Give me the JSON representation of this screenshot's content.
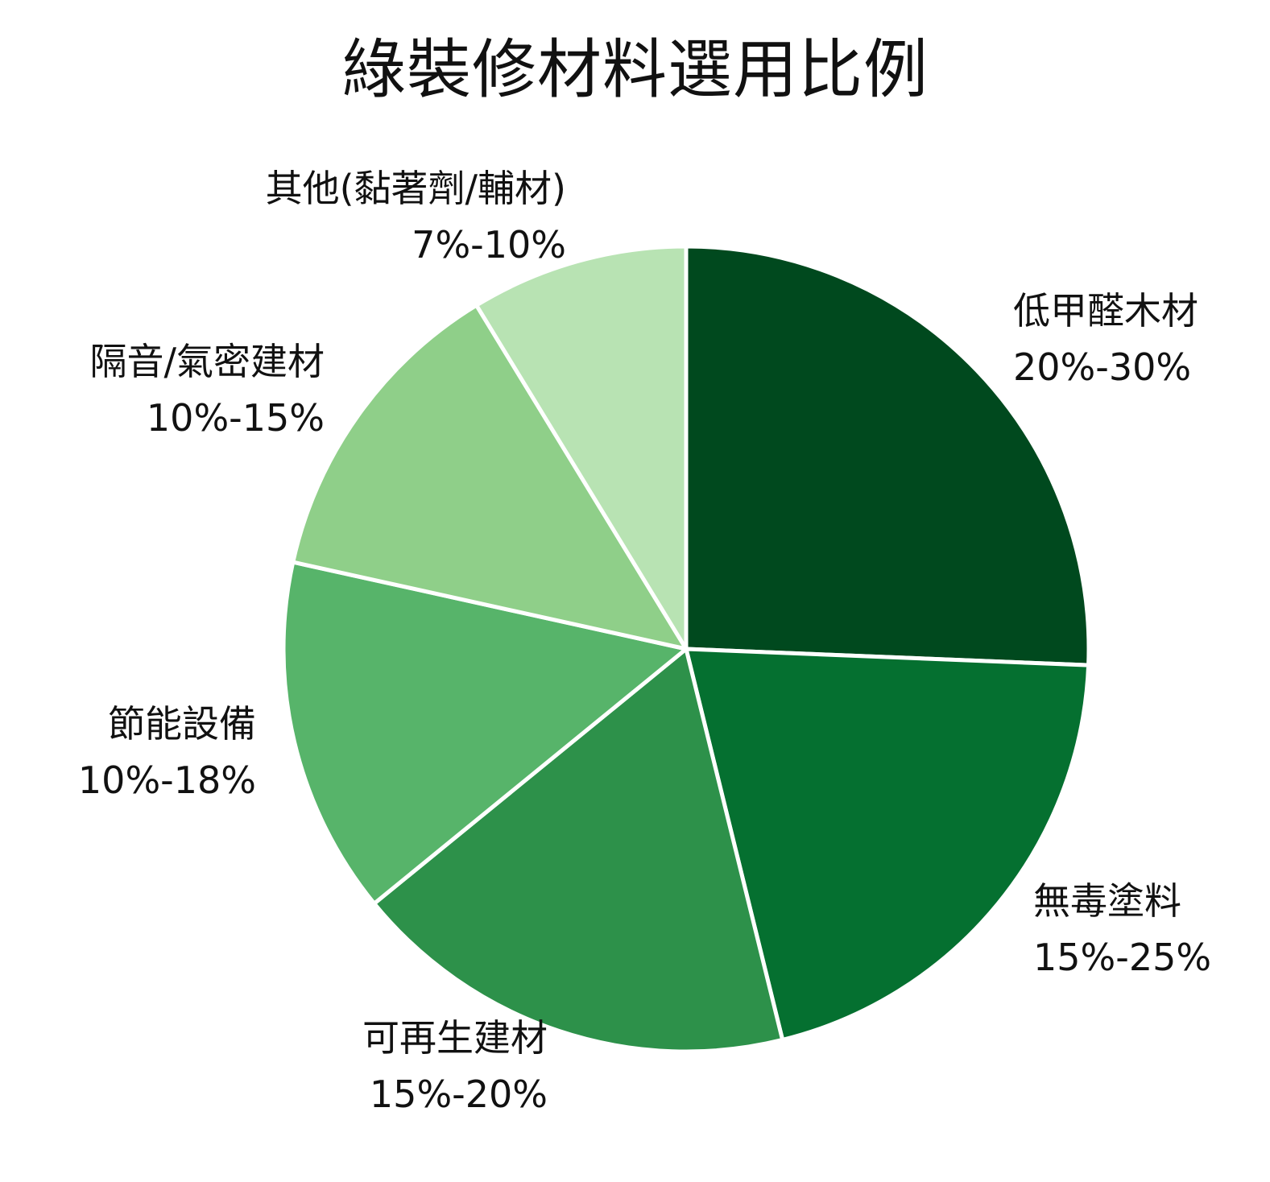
{
  "chart_data": {
    "type": "pie",
    "title": "綠裝修材料選用比例",
    "slices": [
      {
        "name": "低甲醛木材",
        "range": "20%-30%",
        "value": 25,
        "color": "#00491e"
      },
      {
        "name": "無毒塗料",
        "range": "15%-25%",
        "value": 20,
        "color": "#057030"
      },
      {
        "name": "可再生建材",
        "range": "15%-20%",
        "value": 17.5,
        "color": "#2d914a"
      },
      {
        "name": "節能設備",
        "range": "10%-18%",
        "value": 14,
        "color": "#57b46a"
      },
      {
        "name": "隔音/氣密建材",
        "range": "10%-15%",
        "value": 12.5,
        "color": "#8fcf89"
      },
      {
        "name": "其他(黏著劑/輔材)",
        "range": "7%-10%",
        "value": 8.5,
        "color": "#b8e3b3"
      }
    ]
  }
}
